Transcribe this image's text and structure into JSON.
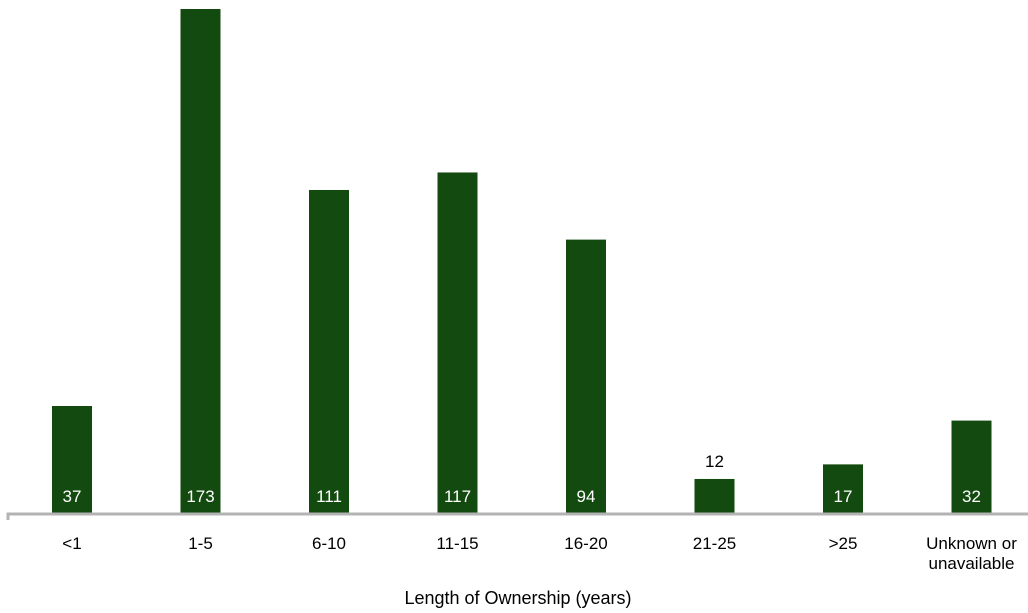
{
  "chart_data": {
    "type": "bar",
    "title": "",
    "xlabel": "Length of Ownership  (years)",
    "ylabel": "",
    "categories": [
      [
        "<1"
      ],
      [
        "1-5"
      ],
      [
        "6-10"
      ],
      [
        "11-15"
      ],
      [
        "16-20"
      ],
      [
        "21-25"
      ],
      [
        ">25"
      ],
      [
        "Unknown or",
        "unavailable"
      ]
    ],
    "values": [
      37,
      173,
      111,
      117,
      94,
      12,
      17,
      32
    ],
    "ylim": [
      0,
      173
    ],
    "grid": false,
    "legend": "none",
    "colors": {
      "bar": "#134a0f",
      "axis": "#b3b3b3",
      "label_inside": "#ffffff",
      "label_outside": "#000000"
    }
  }
}
